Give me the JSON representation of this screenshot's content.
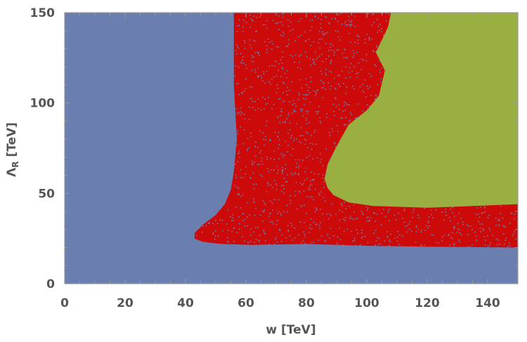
{
  "chart_data": {
    "type": "scatter",
    "title": "",
    "xlabel": "w [TeV]",
    "ylabel_main": "Λ",
    "ylabel_sub": "R",
    "ylabel_unit": " [TeV]",
    "xlim": [
      0,
      150
    ],
    "ylim": [
      0,
      150
    ],
    "x_ticks": [
      0,
      20,
      40,
      60,
      80,
      100,
      120,
      140
    ],
    "y_ticks": [
      0,
      50,
      100,
      150
    ],
    "grid": false,
    "colors": {
      "blue": "#6a7fb0",
      "red": "#cc0a0a",
      "green": "#9aaf42",
      "axis": "#999999",
      "tick_text": "#555555"
    },
    "regions": [
      {
        "color": "blue",
        "description_points_data_units": [
          [
            0,
            0
          ],
          [
            150,
            0
          ],
          [
            150,
            150
          ],
          [
            0,
            150
          ]
        ]
      },
      {
        "color": "red",
        "boundary": [
          [
            56,
            150
          ],
          [
            56,
            110
          ],
          [
            57,
            80
          ],
          [
            56,
            62
          ],
          [
            55,
            52
          ],
          [
            53,
            44
          ],
          [
            50,
            38
          ],
          [
            46,
            33
          ],
          [
            43,
            28
          ],
          [
            43,
            25
          ],
          [
            46,
            23
          ],
          [
            52,
            22
          ],
          [
            62,
            21.5
          ],
          [
            80,
            22
          ],
          [
            100,
            21
          ],
          [
            120,
            20.5
          ],
          [
            150,
            20
          ],
          [
            150,
            150
          ]
        ]
      },
      {
        "color": "green",
        "boundary": [
          [
            150,
            150
          ],
          [
            108,
            150
          ],
          [
            107,
            142
          ],
          [
            103,
            128
          ],
          [
            106,
            118
          ],
          [
            104,
            104
          ],
          [
            100,
            96
          ],
          [
            94,
            88
          ],
          [
            90,
            76
          ],
          [
            87,
            66
          ],
          [
            86,
            58
          ],
          [
            87,
            53
          ],
          [
            89,
            49
          ],
          [
            94,
            45
          ],
          [
            102,
            43
          ],
          [
            120,
            42
          ],
          [
            150,
            44
          ]
        ]
      }
    ]
  }
}
